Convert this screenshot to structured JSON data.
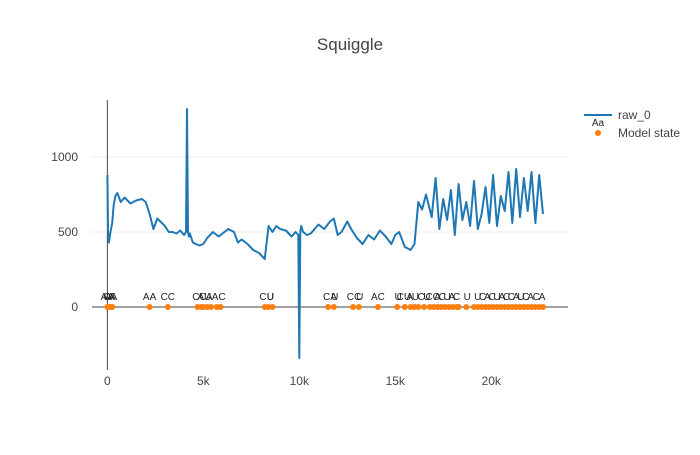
{
  "chart_data": {
    "type": "line",
    "title": "Squiggle",
    "xlabel": "",
    "ylabel": "",
    "xlim": [
      -800,
      24000
    ],
    "ylim": [
      -420,
      1380
    ],
    "x_ticks": [
      0,
      5000,
      10000,
      15000,
      20000
    ],
    "x_tick_labels": [
      "0",
      "5k",
      "10k",
      "15k",
      "20k"
    ],
    "y_ticks": [
      0,
      500,
      1000
    ],
    "y_tick_labels": [
      "0",
      "500",
      "1000"
    ],
    "grid": true,
    "legend_position": "top-right",
    "colors": {
      "raw": "#1f77b4",
      "state": "#ff7f0e",
      "zero_line": "#444444",
      "grid": "#eeeeee"
    },
    "series": [
      {
        "name": "raw_0",
        "kind": "line",
        "x": [
          0,
          40,
          80,
          150,
          250,
          330,
          420,
          520,
          700,
          900,
          1200,
          1500,
          1800,
          2000,
          2200,
          2300,
          2400,
          2600,
          3000,
          3200,
          3400,
          3600,
          3800,
          4000,
          4100,
          4150,
          4200,
          4250,
          4300,
          4450,
          4600,
          4800,
          5000,
          5200,
          5500,
          5800,
          6000,
          6300,
          6600,
          6800,
          7000,
          7300,
          7600,
          7900,
          8200,
          8400,
          8600,
          8800,
          9000,
          9300,
          9600,
          9800,
          9950,
          10000,
          10050,
          10100,
          10200,
          10400,
          10600,
          10800,
          11000,
          11300,
          11600,
          11800,
          12000,
          12200,
          12500,
          12700,
          13000,
          13300,
          13600,
          13900,
          14200,
          14500,
          14800,
          15000,
          15200,
          15500,
          15800,
          16000,
          16200,
          16400,
          16600,
          16900,
          17100,
          17300,
          17500,
          17700,
          17900,
          18100,
          18300,
          18500,
          18700,
          18900,
          19100,
          19300,
          19500,
          19700,
          19900,
          20100,
          20300,
          20500,
          20700,
          20900,
          21100,
          21300,
          21500,
          21700,
          21900,
          22100,
          22300,
          22500,
          22700
        ],
        "values": [
          880,
          470,
          430,
          490,
          560,
          680,
          740,
          760,
          700,
          730,
          690,
          710,
          720,
          700,
          620,
          570,
          520,
          590,
          540,
          500,
          500,
          490,
          510,
          480,
          500,
          1320,
          500,
          470,
          490,
          430,
          420,
          410,
          420,
          460,
          500,
          470,
          490,
          520,
          500,
          430,
          450,
          420,
          380,
          360,
          320,
          540,
          500,
          540,
          520,
          510,
          470,
          500,
          480,
          -340,
          500,
          540,
          500,
          480,
          490,
          520,
          550,
          520,
          570,
          590,
          480,
          500,
          570,
          520,
          460,
          420,
          480,
          450,
          510,
          470,
          420,
          480,
          500,
          400,
          380,
          420,
          700,
          650,
          750,
          600,
          860,
          520,
          720,
          580,
          780,
          480,
          820,
          580,
          700,
          540,
          840,
          520,
          620,
          800,
          560,
          880,
          540,
          740,
          640,
          900,
          560,
          920,
          600,
          860,
          640,
          900,
          560,
          880,
          620
        ]
      },
      {
        "name": "Model state",
        "kind": "scatter",
        "x": [
          0,
          80,
          170,
          260,
          2200,
          3150,
          4700,
          4900,
          5000,
          5200,
          5400,
          5700,
          5900,
          8200,
          8400,
          8600,
          11500,
          11800,
          12800,
          13100,
          14100,
          15100,
          15500,
          15800,
          16000,
          16200,
          16500,
          16800,
          17000,
          17200,
          17400,
          17600,
          17800,
          18000,
          18200,
          18300,
          18700,
          19100,
          19300,
          19500,
          19700,
          19900,
          20100,
          20300,
          20500,
          20700,
          20900,
          21100,
          21300,
          21500,
          21700,
          21900,
          22100,
          22300,
          22500,
          22700
        ],
        "values": [
          0,
          0,
          0,
          0,
          0,
          0,
          0,
          0,
          0,
          0,
          0,
          0,
          0,
          0,
          0,
          0,
          0,
          0,
          0,
          0,
          0,
          0,
          0,
          0,
          0,
          0,
          0,
          0,
          0,
          0,
          0,
          0,
          0,
          0,
          0,
          0,
          0,
          0,
          0,
          0,
          0,
          0,
          0,
          0,
          0,
          0,
          0,
          0,
          0,
          0,
          0,
          0,
          0,
          0,
          0,
          0
        ]
      }
    ],
    "point_labels": [
      {
        "x": 0,
        "text": "AA"
      },
      {
        "x": 60,
        "text": "A"
      },
      {
        "x": 150,
        "text": "CA"
      },
      {
        "x": 250,
        "text": "A"
      },
      {
        "x": 2200,
        "text": "AA"
      },
      {
        "x": 3150,
        "text": "CC"
      },
      {
        "x": 4800,
        "text": "CC"
      },
      {
        "x": 5050,
        "text": "AU"
      },
      {
        "x": 5300,
        "text": "A"
      },
      {
        "x": 5800,
        "text": "AC"
      },
      {
        "x": 8300,
        "text": "CU"
      },
      {
        "x": 8500,
        "text": "U"
      },
      {
        "x": 11600,
        "text": "CA"
      },
      {
        "x": 11850,
        "text": "U"
      },
      {
        "x": 12850,
        "text": "CC"
      },
      {
        "x": 13150,
        "text": "U"
      },
      {
        "x": 14100,
        "text": "AC"
      },
      {
        "x": 15150,
        "text": "U"
      },
      {
        "x": 15450,
        "text": "CU"
      },
      {
        "x": 15750,
        "text": "A"
      },
      {
        "x": 16050,
        "text": "U"
      },
      {
        "x": 16350,
        "text": "C"
      },
      {
        "x": 16650,
        "text": "U"
      },
      {
        "x": 16950,
        "text": "CC"
      },
      {
        "x": 17200,
        "text": "A"
      },
      {
        "x": 17450,
        "text": "C"
      },
      {
        "x": 17700,
        "text": "U"
      },
      {
        "x": 17950,
        "text": "A"
      },
      {
        "x": 18200,
        "text": "C"
      },
      {
        "x": 18750,
        "text": "U"
      },
      {
        "x": 19300,
        "text": "U"
      },
      {
        "x": 19550,
        "text": "C"
      },
      {
        "x": 19800,
        "text": "A"
      },
      {
        "x": 20050,
        "text": "C"
      },
      {
        "x": 20300,
        "text": "U"
      },
      {
        "x": 20550,
        "text": "A"
      },
      {
        "x": 20800,
        "text": "C"
      },
      {
        "x": 21050,
        "text": "C"
      },
      {
        "x": 21300,
        "text": "A"
      },
      {
        "x": 21550,
        "text": "U"
      },
      {
        "x": 21800,
        "text": "C"
      },
      {
        "x": 22050,
        "text": "A"
      },
      {
        "x": 22350,
        "text": "C"
      },
      {
        "x": 22650,
        "text": "A"
      }
    ],
    "legend_items": [
      {
        "label": "raw_0",
        "marker": "line",
        "sublabel": "Aa"
      },
      {
        "label": "Model state",
        "marker": "dot"
      }
    ]
  }
}
